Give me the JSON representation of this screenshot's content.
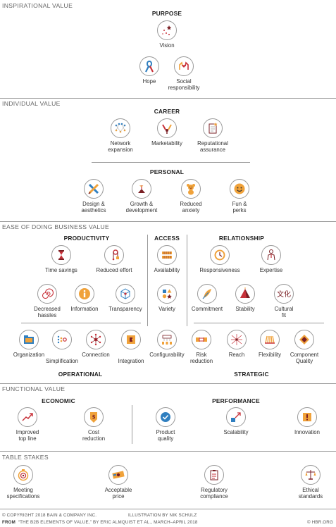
{
  "sections": {
    "inspirational": "INSPIRATIONAL VALUE",
    "individual": "INDIVIDUAL VALUE",
    "ease": "EASE OF DOING BUSINESS VALUE",
    "functional": "FUNCTIONAL VALUE",
    "table_stakes": "TABLE STAKES"
  },
  "headings": {
    "purpose": "PURPOSE",
    "career": "CAREER",
    "personal": "PERSONAL",
    "productivity": "PRODUCTIVITY",
    "access": "ACCESS",
    "relationship": "RELATIONSHIP",
    "operational": "OPERATIONAL",
    "strategic": "STRATEGIC",
    "economic": "ECONOMIC",
    "performance": "PERFORMANCE"
  },
  "elements": {
    "vision": "Vision",
    "hope": "Hope",
    "social_responsibility": "Social\nresponsibility",
    "network_expansion": "Network\nexpansion",
    "marketability": "Marketability",
    "reputational_assurance": "Reputational\nassurance",
    "design_aesthetics": "Design &\naesthetics",
    "growth_development": "Growth &\ndevelopment",
    "reduced_anxiety": "Reduced\nanxiety",
    "fun_perks": "Fun &\nperks",
    "time_savings": "Time savings",
    "reduced_effort": "Reduced effort",
    "decreased_hassles": "Decreased\nhassles",
    "information": "Information",
    "transparency": "Transparency",
    "availability": "Availability",
    "variety": "Variety",
    "configurability": "Configurability",
    "responsiveness": "Responsiveness",
    "expertise": "Expertise",
    "commitment": "Commitment",
    "stability": "Stability",
    "cultural_fit": "Cultural\nfit",
    "organization": "Organization",
    "simplification": "Simplification",
    "connection": "Connection",
    "integration": "Integration",
    "risk_reduction": "Risk\nreduction",
    "reach": "Reach",
    "flexibility": "Flexibility",
    "component_quality": "Component\nQuality",
    "improved_top_line": "Improved\ntop line",
    "cost_reduction": "Cost\nreduction",
    "product_quality": "Product\nquality",
    "scalability": "Scalability",
    "innovation": "Innovation",
    "meeting_specifications": "Meeting\nspecifications",
    "acceptable_price": "Acceptable\nprice",
    "regulatory_compliance": "Regulatory\ncompliance",
    "ethical_standards": "Ethical\nstandards"
  },
  "icons": {
    "vision": "stars-icon",
    "hope": "ribbon-icon",
    "social_responsibility": "hands-icon",
    "network_expansion": "network-icon",
    "marketability": "megaphone-icon",
    "reputational_assurance": "document-star-icon",
    "design_aesthetics": "pencil-ruler-icon",
    "growth_development": "sprout-icon",
    "reduced_anxiety": "teddy-bear-icon",
    "fun_perks": "smiley-icon",
    "time_savings": "hourglass-icon",
    "reduced_effort": "pulley-icon",
    "decreased_hassles": "spiral-icon",
    "information": "info-icon",
    "transparency": "cube-icon",
    "availability": "shelves-icon",
    "variety": "shapes-icon",
    "configurability": "cups-icon",
    "responsiveness": "clock-icon",
    "expertise": "person-icon",
    "commitment": "quill-icon",
    "stability": "pyramid-icon",
    "cultural_fit": "characters-icon",
    "organization": "folder-icon",
    "simplification": "dots-icon",
    "connection": "hub-icon",
    "integration": "puzzle-icon",
    "risk_reduction": "chain-icon",
    "reach": "burst-icon",
    "flexibility": "spring-icon",
    "component_quality": "chip-icon",
    "improved_top_line": "rising-arrow-icon",
    "cost_reduction": "price-tag-icon",
    "product_quality": "check-badge-icon",
    "scalability": "expand-arrow-icon",
    "innovation": "lightbulb-box-icon",
    "meeting_specifications": "target-icon",
    "acceptable_price": "banknote-icon",
    "regulatory_compliance": "clipboard-icon",
    "ethical_standards": "scales-icon"
  },
  "footer": {
    "copyright": "© COPYRIGHT 2018 BAIN & COMPANY INC.",
    "illustration": "ILLUSTRATION BY NIK SCHULZ",
    "from_label": "FROM",
    "source": "“THE B2B ELEMENTS OF VALUE,” BY ERIC ALMQUIST ET AL., MARCH–APRIL 2018",
    "site": "© HBR.ORG"
  },
  "colors": {
    "orange": "#f0a23a",
    "red": "#c8323a",
    "dark_red": "#7a1f24",
    "blue": "#2f7fc0",
    "gray_line": "#9a9a9a"
  }
}
